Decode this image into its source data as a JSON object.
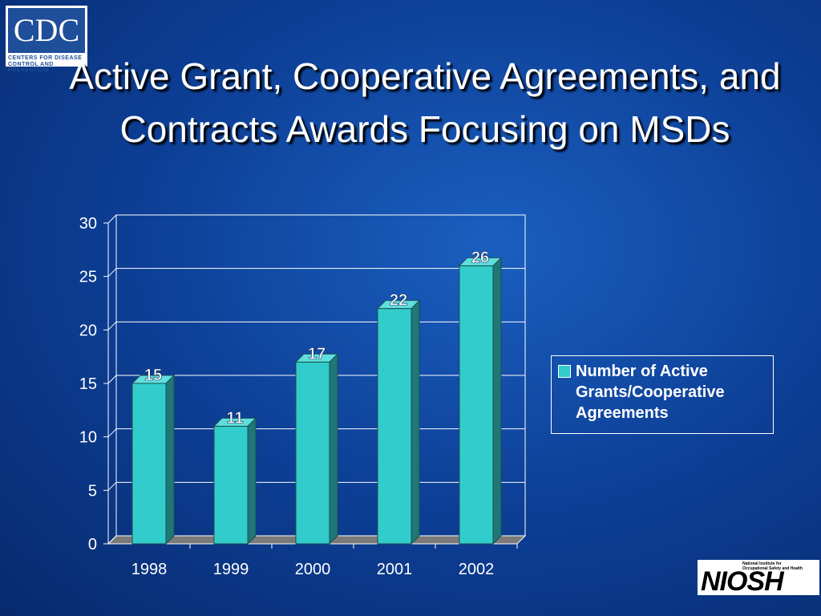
{
  "chart_data": {
    "type": "bar3d",
    "title": "Active Grant, Cooperative Agreements, and Contracts Awards Focusing on MSDs",
    "categories": [
      "1998",
      "1999",
      "2000",
      "2001",
      "2002"
    ],
    "series": [
      {
        "name": "Number of Active Grants/Cooperative Agreements",
        "color": "#33cccc",
        "values": [
          15,
          11,
          17,
          22,
          26
        ]
      }
    ],
    "ylim": [
      0,
      30
    ],
    "yticks": [
      0,
      5,
      10,
      15,
      20,
      25,
      30
    ],
    "grid": true,
    "legend": "right"
  },
  "cdc_logo": {
    "mark": "CDC",
    "line1": "Centers for Disease",
    "line2": "Control and Prevention"
  },
  "niosh_logo": {
    "mark": "NIOSH",
    "line1": "National Institute for",
    "line2": "Occupational Safety and Health"
  }
}
